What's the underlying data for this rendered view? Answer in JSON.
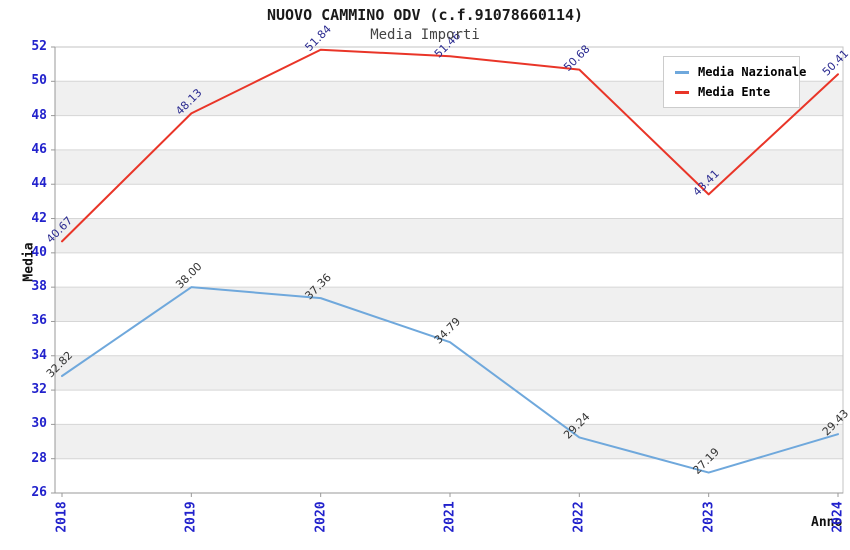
{
  "chart_data": {
    "type": "line",
    "title": "NUOVO CAMMINO ODV (c.f.91078660114)",
    "subtitle": "Media Importi",
    "x": [
      2018,
      2019,
      2020,
      2021,
      2022,
      2023,
      2024
    ],
    "series": [
      {
        "name": "Media Nazionale",
        "color": "#6FA8DC",
        "label_color": "#333333",
        "values": [
          32.82,
          38.0,
          37.36,
          34.79,
          29.24,
          27.19,
          29.43
        ]
      },
      {
        "name": "Media Ente",
        "color": "#E93528",
        "label_color": "#2A2A90",
        "values": [
          40.67,
          48.13,
          51.84,
          51.46,
          50.68,
          43.41,
          50.41
        ]
      }
    ],
    "xlabel": "Anno",
    "ylabel": "Media",
    "ylim": [
      26,
      52
    ],
    "ytick_step": 2,
    "grid": true,
    "legend_position": "top-right",
    "colors": {
      "tick_label": "#2222CC",
      "band": "#F0F0F0",
      "grid": "#D6D6D6",
      "axis": "#999999",
      "border": "#C3C3C3"
    }
  }
}
